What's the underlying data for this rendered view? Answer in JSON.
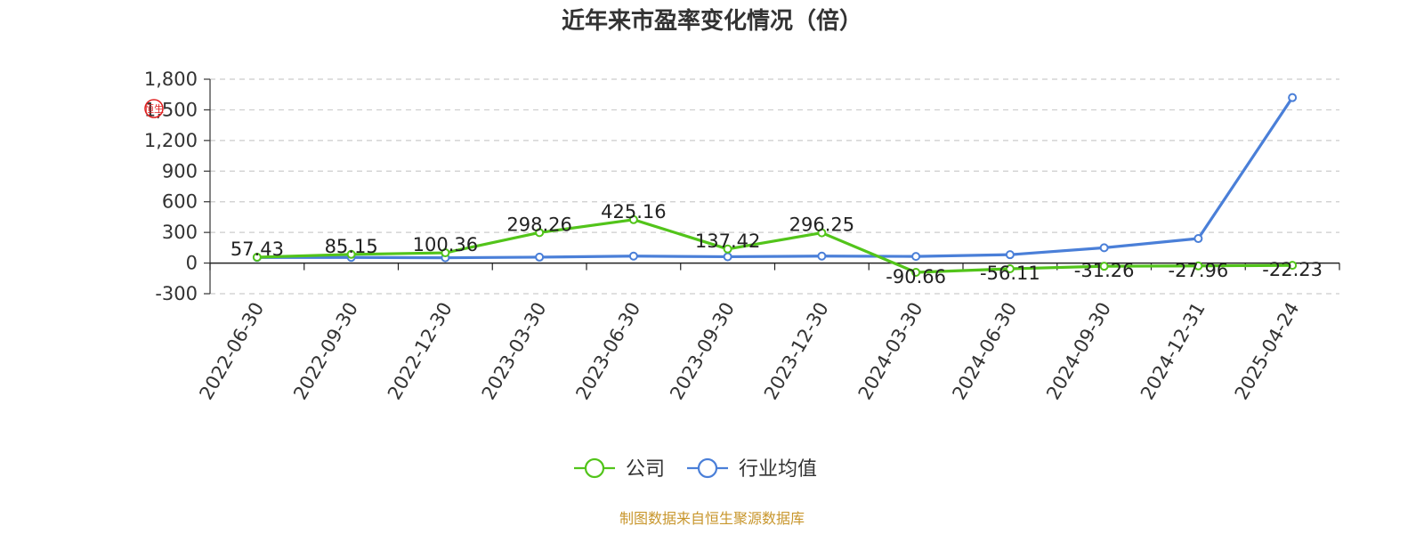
{
  "chart_data": {
    "type": "line",
    "title": "近年来市盈率变化情况（倍）",
    "categories": [
      "2022-06-30",
      "2022-09-30",
      "2022-12-30",
      "2023-03-30",
      "2023-06-30",
      "2023-09-30",
      "2023-12-30",
      "2024-03-30",
      "2024-06-30",
      "2024-09-30",
      "2024-12-31",
      "2025-04-24"
    ],
    "series": [
      {
        "name": "公司",
        "color": "#52c41a",
        "values": [
          57.43,
          85.15,
          100.36,
          298.26,
          425.16,
          137.42,
          296.25,
          -90.66,
          -56.11,
          -31.26,
          -27.96,
          -22.23
        ],
        "labels": [
          "57.43",
          "85.15",
          "100.36",
          "298.26",
          "425.16",
          "137.42",
          "296.25",
          "-90.66",
          "-56.11",
          "-31.26",
          "-27.96",
          "-22.23"
        ]
      },
      {
        "name": "行业均值",
        "color": "#4a7fd8",
        "values": [
          55,
          55,
          52,
          58,
          68,
          62,
          68,
          65,
          82,
          150,
          240,
          1620
        ]
      }
    ],
    "ylim": [
      -300,
      1800
    ],
    "yticks": [
      -300,
      0,
      300,
      600,
      900,
      1200,
      1500,
      1800
    ],
    "ytick_labels": [
      "-300",
      "0",
      "300",
      "600",
      "900",
      "1,200",
      "1,500",
      "1,800"
    ],
    "grid": true,
    "legend_position": "bottom-center",
    "source_note": "制图数据来自恒生聚源数据库",
    "watermark_text": "恒生"
  }
}
